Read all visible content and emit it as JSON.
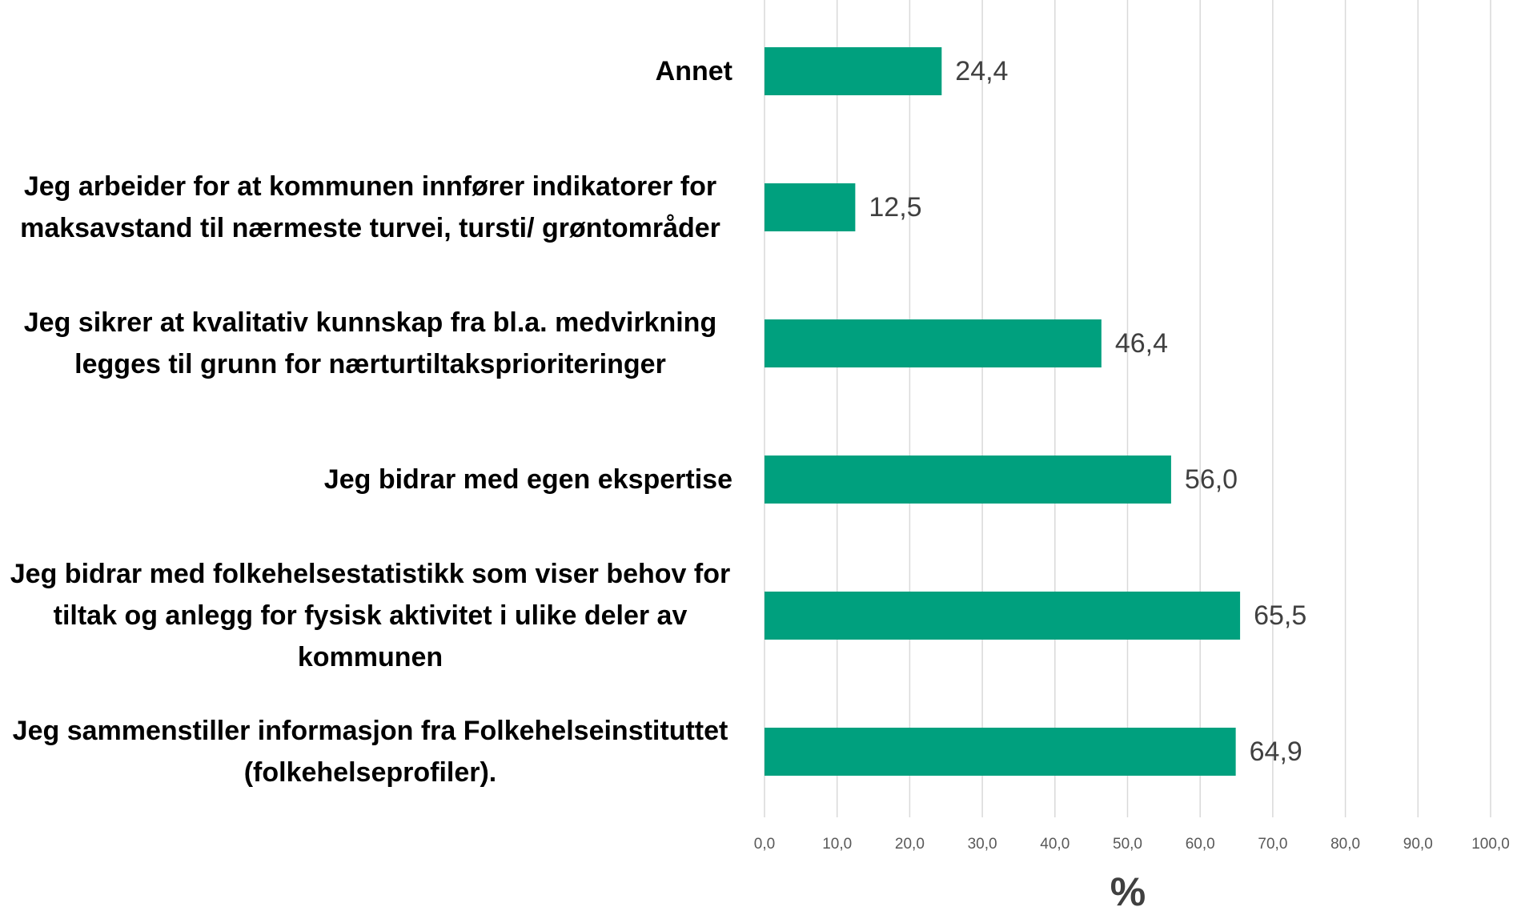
{
  "chart_data": {
    "type": "barh",
    "categories": [
      "Annet",
      "Jeg arbeider for at kommunen innfører indikatorer for maksavstand til nærmeste turvei, tursti/ grøntområder",
      "Jeg sikrer at kvalitativ kunnskap fra bl.a. medvirkning legges til grunn for nærturtiltaksprioriteringer",
      "Jeg bidrar med egen ekspertise",
      "Jeg bidrar med folkehelsestatistikk som viser behov for tiltak og anlegg for fysisk aktivitet i ulike deler av kommunen",
      "Jeg sammenstiller informasjon fra Folkehelseinstituttet (folkehelseprofiler)."
    ],
    "values": [
      24.4,
      12.5,
      46.4,
      56.0,
      65.5,
      64.9
    ],
    "value_labels": [
      "24,4",
      "12,5",
      "46,4",
      "56,0",
      "65,5",
      "64,9"
    ],
    "color": "#00a07e",
    "xlabel": "%",
    "xlim": [
      0,
      100
    ],
    "xticks": [
      {
        "value": 0,
        "label": "0,0"
      },
      {
        "value": 10,
        "label": "10,0"
      },
      {
        "value": 20,
        "label": "20,0"
      },
      {
        "value": 30,
        "label": "30,0"
      },
      {
        "value": 40,
        "label": "40,0"
      },
      {
        "value": 50,
        "label": "50,0"
      },
      {
        "value": 60,
        "label": "60,0"
      },
      {
        "value": 70,
        "label": "70,0"
      },
      {
        "value": 80,
        "label": "80,0"
      },
      {
        "value": 90,
        "label": "90,0"
      },
      {
        "value": 100,
        "label": "100,0"
      }
    ],
    "grid": true
  }
}
